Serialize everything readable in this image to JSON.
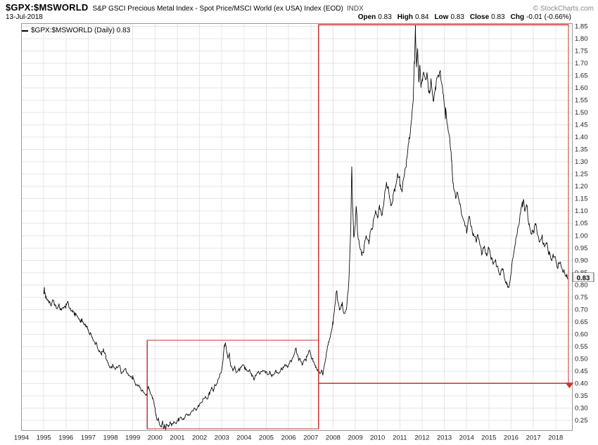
{
  "header": {
    "symbol": "$GPX:$MSWORLD",
    "description": "S&P GSCI Precious Metal Index - Spot Price/MSCI World (ex USA) Index (EOD)",
    "exchange": "INDX",
    "copyright": "© StockCharts.com",
    "date": "13-Jul-2018",
    "quote": [
      {
        "label": "Open",
        "value": "0.83"
      },
      {
        "label": "High",
        "value": "0.84"
      },
      {
        "label": "Low",
        "value": "0.83"
      },
      {
        "label": "Close",
        "value": "0.83"
      },
      {
        "label": "Chg",
        "value": "-0.01 (-0.66%)"
      }
    ]
  },
  "legend": {
    "label": "$GPX:$MSWORLD (Daily) 0.83"
  },
  "axis_price_label": "0.83",
  "colors": {
    "line": "#000000",
    "annotation_red": "#cc3333",
    "grid": "#e5e5e5",
    "border": "#999999",
    "axis_text": "#222222"
  },
  "chart_data": {
    "type": "line",
    "title": "$GPX:$MSWORLD — S&P GSCI Precious Metal Index - Spot Price / MSCI World (ex USA) Index (EOD)",
    "series_name": "$GPX:$MSWORLD (Daily)",
    "last_close": 0.83,
    "grid": true,
    "legend_position": "top-left",
    "xlim": [
      1994.0,
      2018.75
    ],
    "ylim": [
      0.208,
      1.862
    ],
    "x_label_years": [
      1994,
      1995,
      1996,
      1997,
      1998,
      1999,
      2000,
      2001,
      2002,
      2003,
      2004,
      2005,
      2006,
      2007,
      2008,
      2009,
      2010,
      2011,
      2012,
      2013,
      2014,
      2015,
      2016,
      2017,
      2018
    ],
    "y_axis": {
      "min_label": 0.25,
      "max_label": 1.85,
      "step": 0.05
    },
    "keypoints": [
      [
        1995.0,
        0.762
      ],
      [
        1995.04,
        0.778
      ],
      [
        1995.1,
        0.75
      ],
      [
        1995.2,
        0.735
      ],
      [
        1995.3,
        0.72
      ],
      [
        1995.4,
        0.735
      ],
      [
        1995.5,
        0.72
      ],
      [
        1995.6,
        0.705
      ],
      [
        1995.7,
        0.715
      ],
      [
        1995.8,
        0.7
      ],
      [
        1995.9,
        0.708
      ],
      [
        1996.0,
        0.715
      ],
      [
        1996.08,
        0.728
      ],
      [
        1996.2,
        0.7
      ],
      [
        1996.3,
        0.692
      ],
      [
        1996.4,
        0.683
      ],
      [
        1996.5,
        0.672
      ],
      [
        1996.6,
        0.66
      ],
      [
        1996.7,
        0.655
      ],
      [
        1996.8,
        0.645
      ],
      [
        1996.9,
        0.632
      ],
      [
        1997.0,
        0.615
      ],
      [
        1997.1,
        0.6
      ],
      [
        1997.2,
        0.582
      ],
      [
        1997.3,
        0.565
      ],
      [
        1997.4,
        0.552
      ],
      [
        1997.5,
        0.528
      ],
      [
        1997.6,
        0.52
      ],
      [
        1997.68,
        0.538
      ],
      [
        1997.8,
        0.505
      ],
      [
        1997.9,
        0.48
      ],
      [
        1998.0,
        0.458
      ],
      [
        1998.1,
        0.475
      ],
      [
        1998.2,
        0.455
      ],
      [
        1998.3,
        0.468
      ],
      [
        1998.4,
        0.472
      ],
      [
        1998.5,
        0.442
      ],
      [
        1998.6,
        0.452
      ],
      [
        1998.7,
        0.458
      ],
      [
        1998.8,
        0.432
      ],
      [
        1998.9,
        0.428
      ],
      [
        1999.0,
        0.422
      ],
      [
        1999.1,
        0.4
      ],
      [
        1999.2,
        0.393
      ],
      [
        1999.3,
        0.388
      ],
      [
        1999.4,
        0.372
      ],
      [
        1999.5,
        0.362
      ],
      [
        1999.6,
        0.352
      ],
      [
        1999.72,
        0.386
      ],
      [
        1999.8,
        0.36
      ],
      [
        1999.9,
        0.338
      ],
      [
        1999.96,
        0.318
      ],
      [
        2000.0,
        0.298
      ],
      [
        2000.05,
        0.268
      ],
      [
        2000.1,
        0.243
      ],
      [
        2000.15,
        0.258
      ],
      [
        2000.2,
        0.235
      ],
      [
        2000.28,
        0.222
      ],
      [
        2000.33,
        0.247
      ],
      [
        2000.38,
        0.218
      ],
      [
        2000.44,
        0.232
      ],
      [
        2000.48,
        0.213
      ],
      [
        2000.53,
        0.236
      ],
      [
        2000.6,
        0.224
      ],
      [
        2000.68,
        0.242
      ],
      [
        2000.75,
        0.23
      ],
      [
        2000.85,
        0.244
      ],
      [
        2000.95,
        0.236
      ],
      [
        2001.05,
        0.252
      ],
      [
        2001.15,
        0.262
      ],
      [
        2001.25,
        0.252
      ],
      [
        2001.35,
        0.266
      ],
      [
        2001.45,
        0.276
      ],
      [
        2001.55,
        0.27
      ],
      [
        2001.65,
        0.285
      ],
      [
        2001.75,
        0.298
      ],
      [
        2001.85,
        0.292
      ],
      [
        2001.95,
        0.308
      ],
      [
        2002.05,
        0.318
      ],
      [
        2002.15,
        0.332
      ],
      [
        2002.25,
        0.344
      ],
      [
        2002.35,
        0.338
      ],
      [
        2002.45,
        0.36
      ],
      [
        2002.55,
        0.384
      ],
      [
        2002.62,
        0.37
      ],
      [
        2002.7,
        0.39
      ],
      [
        2002.8,
        0.404
      ],
      [
        2002.9,
        0.428
      ],
      [
        2003.0,
        0.455
      ],
      [
        2003.06,
        0.502
      ],
      [
        2003.12,
        0.548
      ],
      [
        2003.16,
        0.568
      ],
      [
        2003.22,
        0.532
      ],
      [
        2003.28,
        0.502
      ],
      [
        2003.33,
        0.52
      ],
      [
        2003.4,
        0.478
      ],
      [
        2003.5,
        0.452
      ],
      [
        2003.58,
        0.466
      ],
      [
        2003.68,
        0.442
      ],
      [
        2003.78,
        0.455
      ],
      [
        2003.88,
        0.468
      ],
      [
        2003.96,
        0.475
      ],
      [
        2004.05,
        0.462
      ],
      [
        2004.15,
        0.446
      ],
      [
        2004.25,
        0.456
      ],
      [
        2004.35,
        0.432
      ],
      [
        2004.45,
        0.42
      ],
      [
        2004.55,
        0.434
      ],
      [
        2004.65,
        0.448
      ],
      [
        2004.75,
        0.44
      ],
      [
        2004.85,
        0.454
      ],
      [
        2004.95,
        0.448
      ],
      [
        2005.05,
        0.436
      ],
      [
        2005.15,
        0.444
      ],
      [
        2005.25,
        0.43
      ],
      [
        2005.35,
        0.44
      ],
      [
        2005.45,
        0.45
      ],
      [
        2005.55,
        0.44
      ],
      [
        2005.65,
        0.453
      ],
      [
        2005.75,
        0.463
      ],
      [
        2005.85,
        0.473
      ],
      [
        2005.95,
        0.468
      ],
      [
        2006.05,
        0.482
      ],
      [
        2006.15,
        0.498
      ],
      [
        2006.25,
        0.515
      ],
      [
        2006.33,
        0.543
      ],
      [
        2006.4,
        0.522
      ],
      [
        2006.46,
        0.49
      ],
      [
        2006.52,
        0.502
      ],
      [
        2006.6,
        0.477
      ],
      [
        2006.7,
        0.49
      ],
      [
        2006.8,
        0.502
      ],
      [
        2006.88,
        0.52
      ],
      [
        2006.94,
        0.534
      ],
      [
        2007.0,
        0.516
      ],
      [
        2007.1,
        0.492
      ],
      [
        2007.2,
        0.47
      ],
      [
        2007.3,
        0.455
      ],
      [
        2007.4,
        0.442
      ],
      [
        2007.48,
        0.452
      ],
      [
        2007.54,
        0.436
      ],
      [
        2007.6,
        0.468
      ],
      [
        2007.7,
        0.52
      ],
      [
        2007.8,
        0.565
      ],
      [
        2007.9,
        0.6
      ],
      [
        2008.0,
        0.648
      ],
      [
        2008.08,
        0.718
      ],
      [
        2008.16,
        0.778
      ],
      [
        2008.22,
        0.73
      ],
      [
        2008.3,
        0.7
      ],
      [
        2008.4,
        0.722
      ],
      [
        2008.5,
        0.682
      ],
      [
        2008.6,
        0.7
      ],
      [
        2008.68,
        0.775
      ],
      [
        2008.74,
        0.89
      ],
      [
        2008.8,
        1.04
      ],
      [
        2008.84,
        1.295
      ],
      [
        2008.88,
        1.12
      ],
      [
        2008.93,
        1.0
      ],
      [
        2009.0,
        1.05
      ],
      [
        2009.04,
        1.115
      ],
      [
        2009.1,
        1.02
      ],
      [
        2009.2,
        0.952
      ],
      [
        2009.3,
        0.922
      ],
      [
        2009.4,
        0.958
      ],
      [
        2009.5,
        1.0
      ],
      [
        2009.6,
        0.972
      ],
      [
        2009.7,
        1.018
      ],
      [
        2009.8,
        1.048
      ],
      [
        2009.9,
        1.098
      ],
      [
        2010.0,
        1.078
      ],
      [
        2010.1,
        1.118
      ],
      [
        2010.2,
        1.082
      ],
      [
        2010.3,
        1.148
      ],
      [
        2010.4,
        1.218
      ],
      [
        2010.5,
        1.178
      ],
      [
        2010.6,
        1.122
      ],
      [
        2010.7,
        1.152
      ],
      [
        2010.8,
        1.198
      ],
      [
        2010.9,
        1.248
      ],
      [
        2011.0,
        1.222
      ],
      [
        2011.1,
        1.182
      ],
      [
        2011.2,
        1.248
      ],
      [
        2011.3,
        1.298
      ],
      [
        2011.4,
        1.378
      ],
      [
        2011.5,
        1.448
      ],
      [
        2011.6,
        1.548
      ],
      [
        2011.66,
        1.72
      ],
      [
        2011.7,
        1.848
      ],
      [
        2011.75,
        1.682
      ],
      [
        2011.8,
        1.748
      ],
      [
        2011.85,
        1.622
      ],
      [
        2011.9,
        1.698
      ],
      [
        2011.96,
        1.602
      ],
      [
        2012.02,
        1.632
      ],
      [
        2012.1,
        1.678
      ],
      [
        2012.16,
        1.62
      ],
      [
        2012.22,
        1.658
      ],
      [
        2012.3,
        1.582
      ],
      [
        2012.4,
        1.618
      ],
      [
        2012.5,
        1.552
      ],
      [
        2012.6,
        1.598
      ],
      [
        2012.7,
        1.648
      ],
      [
        2012.78,
        1.672
      ],
      [
        2012.88,
        1.618
      ],
      [
        2012.96,
        1.572
      ],
      [
        2013.05,
        1.502
      ],
      [
        2013.15,
        1.448
      ],
      [
        2013.25,
        1.388
      ],
      [
        2013.32,
        1.308
      ],
      [
        2013.4,
        1.208
      ],
      [
        2013.5,
        1.152
      ],
      [
        2013.6,
        1.178
      ],
      [
        2013.7,
        1.122
      ],
      [
        2013.8,
        1.082
      ],
      [
        2013.9,
        1.052
      ],
      [
        2014.0,
        1.022
      ],
      [
        2014.1,
        1.078
      ],
      [
        2014.2,
        1.042
      ],
      [
        2014.3,
        1.002
      ],
      [
        2014.4,
        0.982
      ],
      [
        2014.5,
        1.002
      ],
      [
        2014.6,
        0.962
      ],
      [
        2014.7,
        0.932
      ],
      [
        2014.8,
        0.952
      ],
      [
        2014.9,
        0.922
      ],
      [
        2015.0,
        0.948
      ],
      [
        2015.1,
        0.918
      ],
      [
        2015.2,
        0.882
      ],
      [
        2015.3,
        0.902
      ],
      [
        2015.4,
        0.862
      ],
      [
        2015.5,
        0.842
      ],
      [
        2015.6,
        0.868
      ],
      [
        2015.7,
        0.832
      ],
      [
        2015.8,
        0.802
      ],
      [
        2015.9,
        0.788
      ],
      [
        2016.0,
        0.852
      ],
      [
        2016.1,
        0.922
      ],
      [
        2016.2,
        0.978
      ],
      [
        2016.3,
        1.022
      ],
      [
        2016.4,
        1.082
      ],
      [
        2016.5,
        1.122
      ],
      [
        2016.56,
        1.148
      ],
      [
        2016.62,
        1.102
      ],
      [
        2016.7,
        1.122
      ],
      [
        2016.8,
        1.052
      ],
      [
        2016.9,
        1.002
      ],
      [
        2017.0,
        1.022
      ],
      [
        2017.1,
        1.048
      ],
      [
        2017.2,
        1.002
      ],
      [
        2017.3,
        0.972
      ],
      [
        2017.4,
        0.992
      ],
      [
        2017.5,
        0.952
      ],
      [
        2017.6,
        0.972
      ],
      [
        2017.7,
        0.932
      ],
      [
        2017.8,
        0.902
      ],
      [
        2017.9,
        0.922
      ],
      [
        2018.0,
        0.902
      ],
      [
        2018.1,
        0.872
      ],
      [
        2018.2,
        0.892
      ],
      [
        2018.3,
        0.862
      ],
      [
        2018.4,
        0.845
      ],
      [
        2018.5,
        0.838
      ],
      [
        2018.54,
        0.83
      ]
    ],
    "annotations": {
      "rectangles": [
        {
          "x0": 1999.65,
          "y0": 0.215,
          "x1": 2007.35,
          "y1": 0.575
        },
        {
          "x0": 2007.35,
          "y0": 0.4,
          "x1": 2018.58,
          "y1": 1.857
        }
      ],
      "marker": {
        "x": 2018.62,
        "y": 0.4,
        "shape": "triangle-down"
      }
    }
  }
}
